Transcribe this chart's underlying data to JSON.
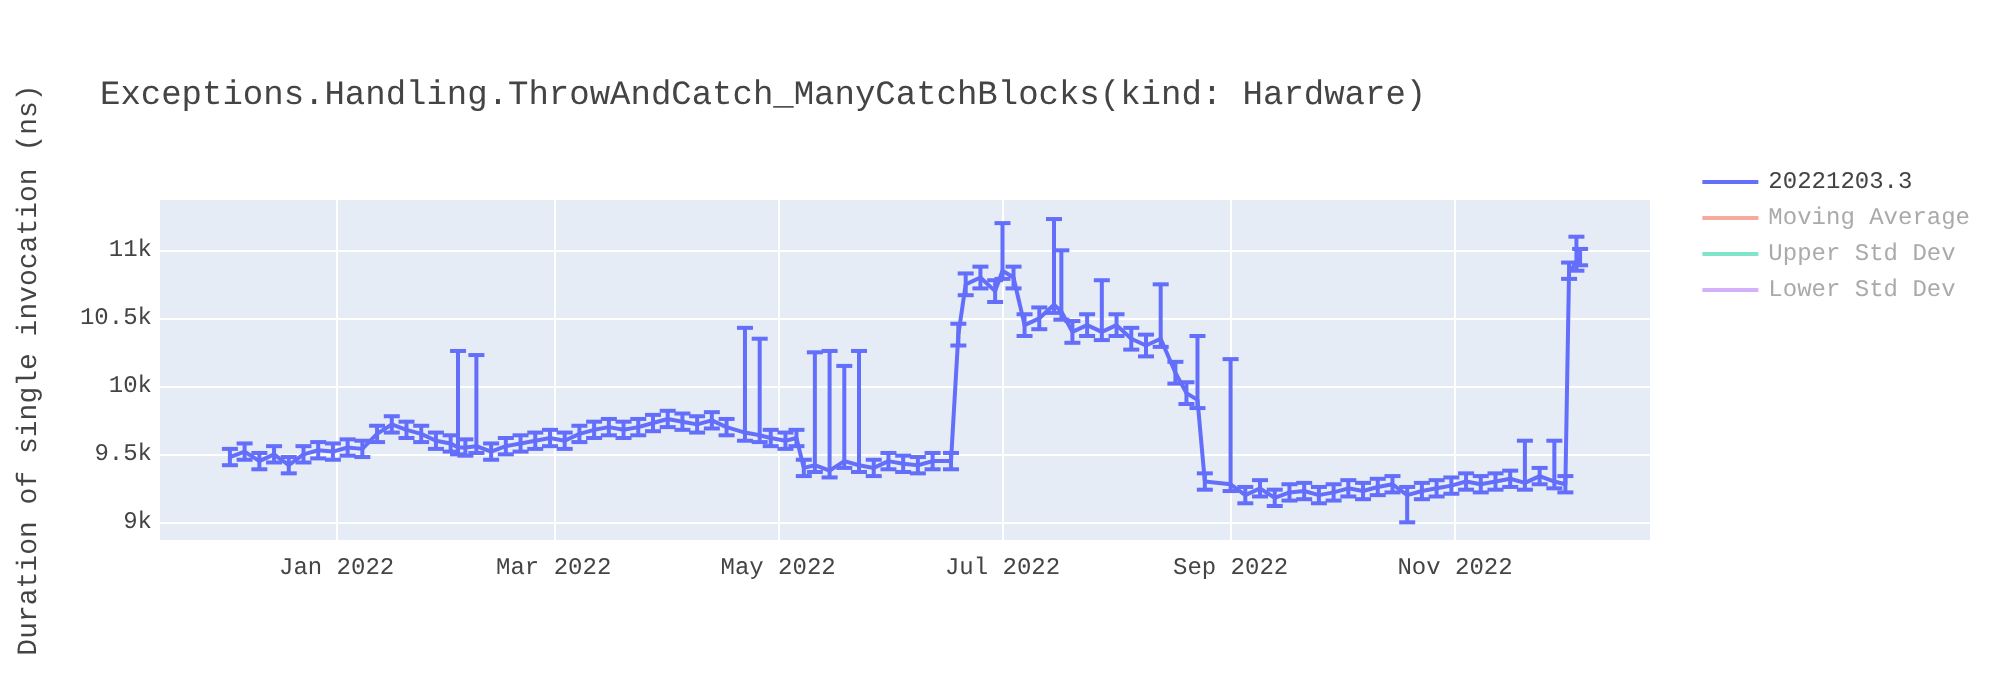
{
  "chart_data": {
    "type": "line",
    "title": "Exceptions.Handling.ThrowAndCatch_ManyCatchBlocks(kind: Hardware)",
    "ylabel": "Duration of single invocation (ns)",
    "xlim": [
      "2021-11-14",
      "2022-12-24"
    ],
    "xticks": [
      {
        "value": "2022-01-01",
        "label": "Jan 2022"
      },
      {
        "value": "2022-03-01",
        "label": "Mar 2022"
      },
      {
        "value": "2022-05-01",
        "label": "May 2022"
      },
      {
        "value": "2022-07-01",
        "label": "Jul 2022"
      },
      {
        "value": "2022-09-01",
        "label": "Sep 2022"
      },
      {
        "value": "2022-11-01",
        "label": "Nov 2022"
      }
    ],
    "ylim": [
      8870,
      11370
    ],
    "yticks": [
      {
        "value": 9000,
        "label": "9k"
      },
      {
        "value": 9500,
        "label": "9.5k"
      },
      {
        "value": 10000,
        "label": "10k"
      },
      {
        "value": 10500,
        "label": "10.5k"
      },
      {
        "value": 11000,
        "label": "11k"
      }
    ],
    "grid": true,
    "legend": "top right",
    "marker": "none",
    "line_style": "solid",
    "series": [
      {
        "name": "20221203.3",
        "color": "#636efa",
        "x": [
          "2021-12-03",
          "2021-12-07",
          "2021-12-11",
          "2021-12-15",
          "2021-12-19",
          "2021-12-23",
          "2021-12-27",
          "2021-12-31",
          "2022-01-04",
          "2022-01-08",
          "2022-01-12",
          "2022-01-16",
          "2022-01-20",
          "2022-01-24",
          "2022-01-28",
          "2022-02-01",
          "2022-02-03",
          "2022-02-05",
          "2022-02-08",
          "2022-02-12",
          "2022-02-16",
          "2022-02-20",
          "2022-02-24",
          "2022-02-28",
          "2022-03-04",
          "2022-03-08",
          "2022-03-12",
          "2022-03-16",
          "2022-03-20",
          "2022-03-24",
          "2022-03-28",
          "2022-04-01",
          "2022-04-05",
          "2022-04-09",
          "2022-04-13",
          "2022-04-17",
          "2022-04-22",
          "2022-04-26",
          "2022-04-29",
          "2022-05-03",
          "2022-05-06",
          "2022-05-08",
          "2022-05-11",
          "2022-05-15",
          "2022-05-19",
          "2022-05-23",
          "2022-05-27",
          "2022-05-31",
          "2022-06-04",
          "2022-06-08",
          "2022-06-12",
          "2022-06-17",
          "2022-06-19",
          "2022-06-21",
          "2022-06-25",
          "2022-06-29",
          "2022-07-01",
          "2022-07-04",
          "2022-07-07",
          "2022-07-11",
          "2022-07-15",
          "2022-07-17",
          "2022-07-20",
          "2022-07-24",
          "2022-07-28",
          "2022-08-01",
          "2022-08-05",
          "2022-08-09",
          "2022-08-13",
          "2022-08-17",
          "2022-08-20",
          "2022-08-23",
          "2022-08-25",
          "2022-09-01",
          "2022-09-05",
          "2022-09-09",
          "2022-09-13",
          "2022-09-17",
          "2022-09-21",
          "2022-09-25",
          "2022-09-29",
          "2022-10-03",
          "2022-10-07",
          "2022-10-11",
          "2022-10-15",
          "2022-10-19",
          "2022-10-23",
          "2022-10-27",
          "2022-10-31",
          "2022-11-04",
          "2022-11-08",
          "2022-11-12",
          "2022-11-16",
          "2022-11-20",
          "2022-11-24",
          "2022-11-28",
          "2022-12-01",
          "2022-12-02",
          "2022-12-04",
          "2022-12-05"
        ],
        "values": [
          9480,
          9520,
          9450,
          9500,
          9420,
          9500,
          9530,
          9520,
          9550,
          9540,
          9650,
          9720,
          9680,
          9650,
          9600,
          9580,
          9550,
          9550,
          9560,
          9520,
          9560,
          9580,
          9600,
          9620,
          9600,
          9650,
          9680,
          9700,
          9680,
          9700,
          9730,
          9760,
          9740,
          9720,
          9750,
          9700,
          9660,
          9640,
          9620,
          9600,
          9620,
          9400,
          9420,
          9380,
          9450,
          9420,
          9400,
          9450,
          9430,
          9420,
          9450,
          9450,
          10380,
          10750,
          10800,
          10700,
          10850,
          10800,
          10450,
          10500,
          10600,
          10550,
          10400,
          10450,
          10400,
          10450,
          10350,
          10300,
          10350,
          10100,
          9950,
          9900,
          9300,
          9280,
          9200,
          9250,
          9180,
          9220,
          9230,
          9200,
          9220,
          9250,
          9230,
          9260,
          9280,
          9200,
          9230,
          9250,
          9270,
          9300,
          9280,
          9300,
          9320,
          9290,
          9340,
          9300,
          9280,
          10850,
          10900,
          10950
        ],
        "errors": [
          60,
          60,
          60,
          60,
          60,
          60,
          60,
          60,
          60,
          60,
          60,
          60,
          60,
          60,
          60,
          60,
          [
            9500,
            10260
          ],
          60,
          [
            9510,
            10230
          ],
          60,
          60,
          60,
          60,
          60,
          60,
          60,
          60,
          60,
          60,
          60,
          60,
          60,
          60,
          60,
          60,
          60,
          [
            9600,
            10430
          ],
          [
            9590,
            10350
          ],
          60,
          60,
          60,
          60,
          [
            9370,
            10250
          ],
          [
            9330,
            10260
          ],
          [
            9400,
            10150
          ],
          [
            9370,
            10260
          ],
          60,
          60,
          60,
          60,
          60,
          60,
          80,
          80,
          80,
          80,
          [
            10790,
            11200
          ],
          80,
          80,
          80,
          [
            10540,
            11230
          ],
          [
            10490,
            11000
          ],
          80,
          80,
          [
            10340,
            10780
          ],
          80,
          80,
          80,
          [
            10290,
            10750
          ],
          80,
          80,
          [
            9840,
            10370
          ],
          60,
          [
            9230,
            10200
          ],
          60,
          60,
          60,
          60,
          60,
          60,
          60,
          60,
          60,
          60,
          60,
          [
            9000,
            9260
          ],
          60,
          60,
          60,
          60,
          60,
          60,
          60,
          [
            9240,
            9600
          ],
          60,
          [
            9250,
            9600
          ],
          60,
          60,
          [
            10850,
            11100
          ],
          60
        ]
      },
      {
        "name": "Moving Average",
        "color": "#f7a99c"
      },
      {
        "name": "Upper Std Dev",
        "color": "#80e5cb"
      },
      {
        "name": "Lower Std Dev",
        "color": "#d5b1fc"
      }
    ]
  }
}
